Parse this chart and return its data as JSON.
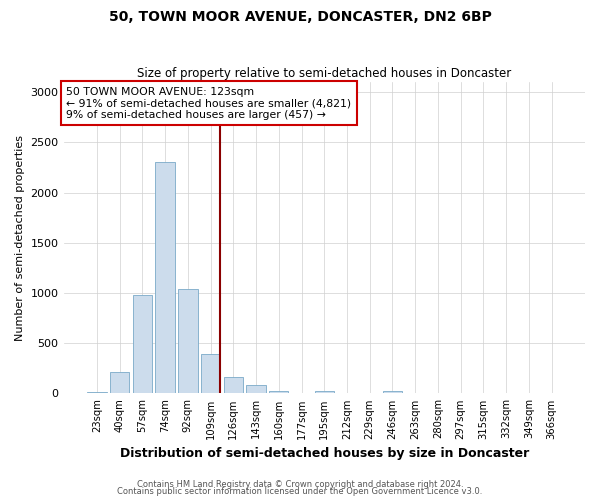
{
  "title": "50, TOWN MOOR AVENUE, DONCASTER, DN2 6BP",
  "subtitle": "Size of property relative to semi-detached houses in Doncaster",
  "xlabel": "Distribution of semi-detached houses by size in Doncaster",
  "ylabel": "Number of semi-detached properties",
  "footnote1": "Contains HM Land Registry data © Crown copyright and database right 2024.",
  "footnote2": "Contains public sector information licensed under the Open Government Licence v3.0.",
  "categories": [
    "23sqm",
    "40sqm",
    "57sqm",
    "74sqm",
    "92sqm",
    "109sqm",
    "126sqm",
    "143sqm",
    "160sqm",
    "177sqm",
    "195sqm",
    "212sqm",
    "229sqm",
    "246sqm",
    "263sqm",
    "280sqm",
    "297sqm",
    "315sqm",
    "332sqm",
    "349sqm",
    "366sqm"
  ],
  "values": [
    15,
    210,
    975,
    2300,
    1040,
    390,
    160,
    85,
    25,
    5,
    28,
    2,
    2,
    28,
    2,
    0,
    0,
    0,
    0,
    0,
    0
  ],
  "bar_color": "#ccdcec",
  "bar_edge_color": "#7aaac8",
  "marker_index": 5,
  "marker_color": "#8b0000",
  "annotation_title": "50 TOWN MOOR AVENUE: 123sqm",
  "annotation_line1": "← 91% of semi-detached houses are smaller (4,821)",
  "annotation_line2": "9% of semi-detached houses are larger (457) →",
  "annotation_box_color": "#ffffff",
  "annotation_box_edge": "#cc0000",
  "ylim": [
    0,
    3100
  ],
  "yticks": [
    0,
    500,
    1000,
    1500,
    2000,
    2500,
    3000
  ]
}
